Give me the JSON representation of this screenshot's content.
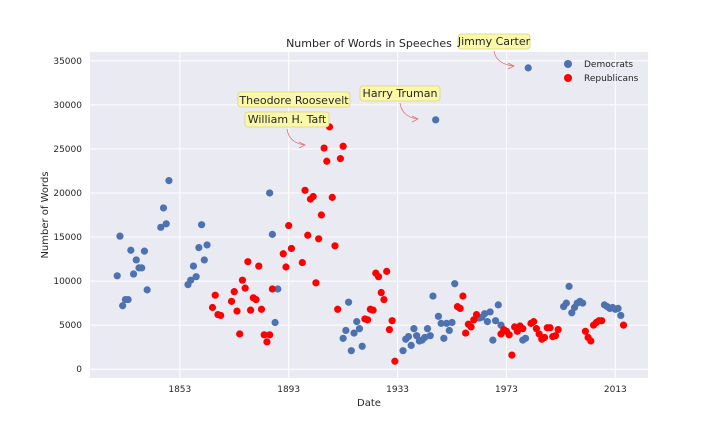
{
  "chart_data": {
    "type": "scatter",
    "title": "Number of Words in Speeches",
    "xlabel": "Date",
    "ylabel": "Number of Words",
    "xlim": [
      1820,
      2025
    ],
    "ylim": [
      -1000,
      36000
    ],
    "xticks": [
      1853,
      1893,
      1933,
      1973,
      2013
    ],
    "yticks": [
      0,
      5000,
      10000,
      15000,
      20000,
      25000,
      30000,
      35000
    ],
    "grid": true,
    "legend_position": "top-right",
    "series": [
      {
        "name": "Democrats",
        "color": "#4c72b0",
        "points": [
          [
            1830,
            10600
          ],
          [
            1831,
            15100
          ],
          [
            1832,
            7200
          ],
          [
            1833,
            7900
          ],
          [
            1834,
            7900
          ],
          [
            1835,
            13500
          ],
          [
            1836,
            10800
          ],
          [
            1837,
            12400
          ],
          [
            1838,
            11500
          ],
          [
            1839,
            11500
          ],
          [
            1840,
            13400
          ],
          [
            1841,
            9000
          ],
          [
            1846,
            16100
          ],
          [
            1847,
            18300
          ],
          [
            1848,
            16500
          ],
          [
            1849,
            21400
          ],
          [
            1856,
            9600
          ],
          [
            1857,
            10100
          ],
          [
            1858,
            11700
          ],
          [
            1859,
            10500
          ],
          [
            1860,
            13800
          ],
          [
            1861,
            16400
          ],
          [
            1862,
            12400
          ],
          [
            1863,
            14100
          ],
          [
            1886,
            20000
          ],
          [
            1887,
            15300
          ],
          [
            1888,
            5300
          ],
          [
            1889,
            9100
          ],
          [
            1913,
            3500
          ],
          [
            1914,
            4400
          ],
          [
            1915,
            7600
          ],
          [
            1916,
            2100
          ],
          [
            1917,
            4100
          ],
          [
            1918,
            5400
          ],
          [
            1919,
            4600
          ],
          [
            1920,
            2600
          ],
          [
            1935,
            2100
          ],
          [
            1936,
            3400
          ],
          [
            1937,
            3700
          ],
          [
            1938,
            2700
          ],
          [
            1939,
            4600
          ],
          [
            1940,
            3800
          ],
          [
            1941,
            3200
          ],
          [
            1942,
            3300
          ],
          [
            1943,
            3600
          ],
          [
            1944,
            4600
          ],
          [
            1945,
            3800
          ],
          [
            1946,
            8300
          ],
          [
            1947,
            28300
          ],
          [
            1948,
            6000
          ],
          [
            1949,
            5200
          ],
          [
            1950,
            3500
          ],
          [
            1951,
            5200
          ],
          [
            1952,
            4400
          ],
          [
            1953,
            5300
          ],
          [
            1954,
            9700
          ],
          [
            1963,
            5800
          ],
          [
            1964,
            5900
          ],
          [
            1965,
            6300
          ],
          [
            1966,
            5400
          ],
          [
            1967,
            6500
          ],
          [
            1968,
            3300
          ],
          [
            1969,
            5500
          ],
          [
            1970,
            7300
          ],
          [
            1971,
            5000
          ],
          [
            1979,
            3300
          ],
          [
            1980,
            3500
          ],
          [
            1981,
            34200
          ],
          [
            1994,
            7100
          ],
          [
            1995,
            7500
          ],
          [
            1996,
            9400
          ],
          [
            1997,
            6400
          ],
          [
            1998,
            7000
          ],
          [
            1999,
            7500
          ],
          [
            2000,
            7700
          ],
          [
            2001,
            7500
          ],
          [
            2009,
            7300
          ],
          [
            2010,
            7100
          ],
          [
            2011,
            6900
          ],
          [
            2012,
            7000
          ],
          [
            2013,
            6800
          ],
          [
            2014,
            6900
          ],
          [
            2015,
            6100
          ]
        ]
      },
      {
        "name": "Republicans",
        "color": "#ff0000",
        "points": [
          [
            1865,
            7000
          ],
          [
            1866,
            8400
          ],
          [
            1867,
            6200
          ],
          [
            1868,
            6100
          ],
          [
            1872,
            7700
          ],
          [
            1873,
            8800
          ],
          [
            1874,
            6600
          ],
          [
            1875,
            4000
          ],
          [
            1876,
            10100
          ],
          [
            1877,
            9200
          ],
          [
            1878,
            12200
          ],
          [
            1879,
            6700
          ],
          [
            1880,
            8100
          ],
          [
            1881,
            7900
          ],
          [
            1882,
            11700
          ],
          [
            1883,
            6800
          ],
          [
            1884,
            3900
          ],
          [
            1885,
            3100
          ],
          [
            1886,
            3900
          ],
          [
            1887,
            9100
          ],
          [
            1891,
            13100
          ],
          [
            1892,
            11600
          ],
          [
            1893,
            16300
          ],
          [
            1894,
            13700
          ],
          [
            1898,
            12100
          ],
          [
            1899,
            20300
          ],
          [
            1900,
            15200
          ],
          [
            1901,
            19300
          ],
          [
            1902,
            19600
          ],
          [
            1903,
            9800
          ],
          [
            1904,
            14800
          ],
          [
            1905,
            17500
          ],
          [
            1906,
            25100
          ],
          [
            1907,
            23600
          ],
          [
            1908,
            27500
          ],
          [
            1909,
            19500
          ],
          [
            1910,
            14000
          ],
          [
            1911,
            6800
          ],
          [
            1912,
            23900
          ],
          [
            1913,
            25300
          ],
          [
            1921,
            5700
          ],
          [
            1922,
            5600
          ],
          [
            1923,
            6800
          ],
          [
            1924,
            6700
          ],
          [
            1925,
            10900
          ],
          [
            1926,
            10500
          ],
          [
            1927,
            8700
          ],
          [
            1928,
            7900
          ],
          [
            1929,
            11100
          ],
          [
            1930,
            4500
          ],
          [
            1931,
            5500
          ],
          [
            1932,
            900
          ],
          [
            1955,
            7100
          ],
          [
            1956,
            6900
          ],
          [
            1957,
            8300
          ],
          [
            1958,
            4100
          ],
          [
            1959,
            5100
          ],
          [
            1960,
            4800
          ],
          [
            1961,
            5600
          ],
          [
            1962,
            6200
          ],
          [
            1971,
            4000
          ],
          [
            1972,
            4500
          ],
          [
            1973,
            4300
          ],
          [
            1974,
            3900
          ],
          [
            1975,
            1600
          ],
          [
            1976,
            4800
          ],
          [
            1977,
            4300
          ],
          [
            1978,
            4900
          ],
          [
            1979,
            4600
          ],
          [
            1982,
            5200
          ],
          [
            1983,
            5400
          ],
          [
            1984,
            4600
          ],
          [
            1985,
            4000
          ],
          [
            1986,
            3400
          ],
          [
            1987,
            3600
          ],
          [
            1988,
            4700
          ],
          [
            1989,
            4700
          ],
          [
            1990,
            3700
          ],
          [
            1991,
            3800
          ],
          [
            1992,
            4500
          ],
          [
            2002,
            4300
          ],
          [
            2003,
            3600
          ],
          [
            2004,
            3200
          ],
          [
            2005,
            5000
          ],
          [
            2006,
            5300
          ],
          [
            2007,
            5500
          ],
          [
            2008,
            5500
          ],
          [
            2016,
            5000
          ]
        ]
      }
    ],
    "annotations": [
      {
        "text": "Jimmy Carter",
        "point": [
          1981,
          34200
        ]
      },
      {
        "text": "Theodore Roosevelt",
        "point": [
          1906,
          25100
        ]
      },
      {
        "text": "William H. Taft",
        "point": [
          1908,
          27500
        ]
      },
      {
        "text": "Harry Truman",
        "point": [
          1947,
          28300
        ]
      }
    ]
  },
  "annotation_box_color": "#fbf8a8",
  "plot_bg": "#eaeaf2"
}
